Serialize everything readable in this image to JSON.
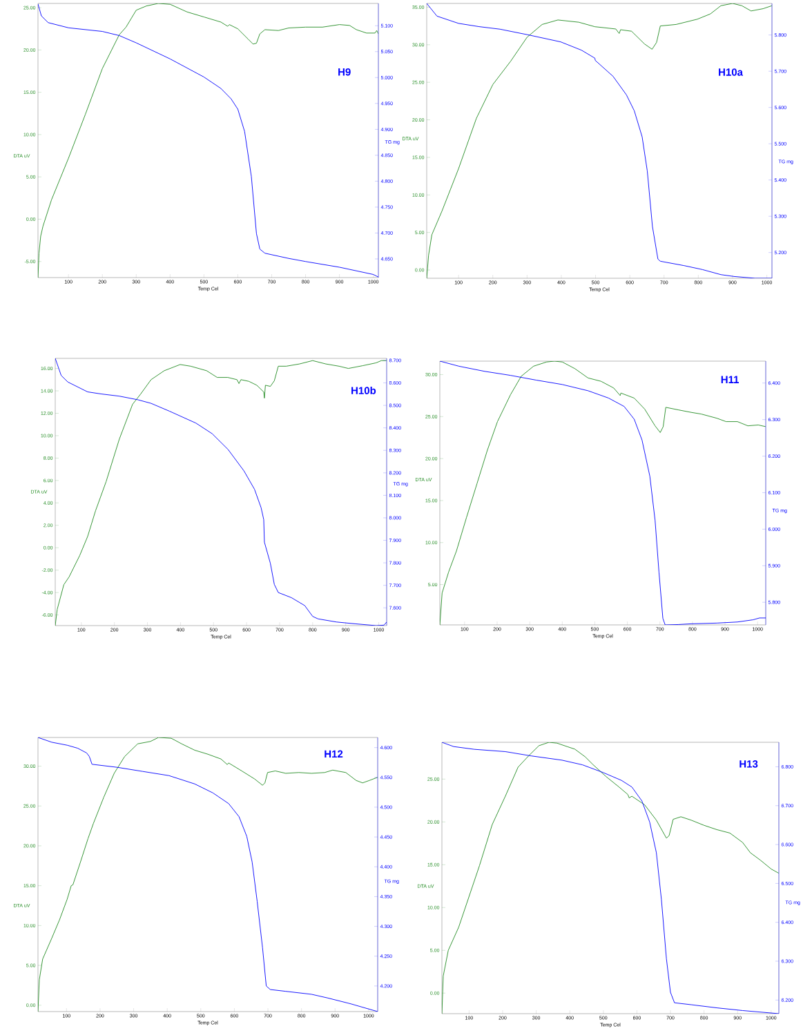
{
  "chart_data": [
    {
      "type": "line",
      "title": "H9",
      "xlabel": "Temp Cel",
      "ylabel": "DTA uV",
      "y2label": "TG mg",
      "xlim": [
        10,
        1015
      ],
      "xticks": [
        100,
        200,
        300,
        400,
        500,
        600,
        700,
        800,
        900,
        1000
      ],
      "ylim": [
        -6.9,
        25.5
      ],
      "yticks": [
        {
          "value": -5,
          "label": "-5.00"
        },
        {
          "value": 0,
          "label": "0.00"
        },
        {
          "value": 5,
          "label": "5.00"
        },
        {
          "value": 10,
          "label": "10.00"
        },
        {
          "value": 15,
          "label": "15.00"
        },
        {
          "value": 20,
          "label": "20.00"
        },
        {
          "value": 25,
          "label": "25.00"
        }
      ],
      "y2lim": [
        4.614,
        5.143
      ],
      "y2ticks": [
        {
          "value": 4.65,
          "label": "4.650"
        },
        {
          "value": 4.7,
          "label": "4.700"
        },
        {
          "value": 4.75,
          "label": "4.750"
        },
        {
          "value": 4.8,
          "label": "4.800"
        },
        {
          "value": 4.85,
          "label": "4.850"
        },
        {
          "value": 4.9,
          "label": "4.900"
        },
        {
          "value": 4.95,
          "label": "4.950"
        },
        {
          "value": 5.0,
          "label": "5.000"
        },
        {
          "value": 5.05,
          "label": "5.050"
        },
        {
          "value": 5.1,
          "label": "5.100"
        }
      ],
      "series": [
        {
          "color": "#228b22",
          "x": [
            10,
            13,
            18,
            25,
            50,
            100,
            150,
            200,
            250,
            270,
            300,
            330,
            365,
            400,
            450,
            500,
            550,
            570,
            575,
            600,
            630,
            645,
            655,
            665,
            680,
            720,
            750,
            800,
            850,
            900,
            930,
            950,
            980,
            1005,
            1010,
            1015
          ],
          "values": [
            -6.9,
            -4,
            -2,
            -0.8,
            2.3,
            7.2,
            12.4,
            17.8,
            21.8,
            22.7,
            24.7,
            25.2,
            25.5,
            25.4,
            24.5,
            23.9,
            23.3,
            22.8,
            23.0,
            22.5,
            21.3,
            20.7,
            20.8,
            21.9,
            22.4,
            22.3,
            22.6,
            22.7,
            22.7,
            23.0,
            22.9,
            22.4,
            22.0,
            22.0,
            22.3,
            21.9
          ]
        },
        {
          "color": "#0000ff",
          "axis": "y2",
          "x": [
            10,
            20,
            40,
            100,
            200,
            250,
            300,
            400,
            500,
            550,
            580,
            600,
            620,
            640,
            655,
            665,
            680,
            750,
            800,
            900,
            1000,
            1015
          ],
          "values": [
            5.142,
            5.119,
            5.106,
            5.096,
            5.089,
            5.081,
            5.067,
            5.036,
            5.001,
            4.979,
            4.959,
            4.939,
            4.896,
            4.809,
            4.699,
            4.669,
            4.661,
            4.651,
            4.645,
            4.634,
            4.62,
            4.615
          ]
        }
      ]
    },
    {
      "type": "line",
      "title": "H10a",
      "xlabel": "Temp Cel",
      "ylabel": "DTA uV",
      "y2label": "TG mg",
      "xlim": [
        7,
        1015
      ],
      "xticks": [
        100,
        200,
        300,
        400,
        500,
        600,
        700,
        800,
        900,
        1000
      ],
      "ylim": [
        -1.1,
        35.5
      ],
      "yticks": [
        {
          "value": 0,
          "label": "0.00"
        },
        {
          "value": 5,
          "label": "5.00"
        },
        {
          "value": 10,
          "label": "10.00"
        },
        {
          "value": 15,
          "label": "15.00"
        },
        {
          "value": 20,
          "label": "20.00"
        },
        {
          "value": 25,
          "label": "25.00"
        },
        {
          "value": 30,
          "label": "30.00"
        },
        {
          "value": 35,
          "label": "35.00"
        }
      ],
      "y2lim": [
        5.129,
        5.887
      ],
      "y2ticks": [
        {
          "value": 5.2,
          "label": "5.200"
        },
        {
          "value": 5.3,
          "label": "5.300"
        },
        {
          "value": 5.4,
          "label": "5.400"
        },
        {
          "value": 5.5,
          "label": "5.500"
        },
        {
          "value": 5.6,
          "label": "5.600"
        },
        {
          "value": 5.7,
          "label": "5.700"
        },
        {
          "value": 5.8,
          "label": "5.800"
        }
      ],
      "series": [
        {
          "color": "#228b22",
          "x": [
            7,
            12.5,
            22,
            52,
            100,
            152,
            200,
            252,
            300,
            344,
            390,
            451,
            498,
            559,
            569,
            573,
            605,
            643,
            665,
            678,
            689,
            735,
            797,
            835,
            866,
            900,
            927,
            954,
            989,
            1015
          ],
          "values": [
            -1.1,
            2.0,
            4.7,
            7.9,
            13.5,
            20.2,
            24.7,
            27.8,
            31.0,
            32.7,
            33.3,
            33.0,
            32.4,
            32.1,
            31.5,
            32.0,
            31.8,
            30.1,
            29.4,
            30.3,
            32.5,
            32.7,
            33.4,
            34.1,
            35.2,
            35.5,
            35.2,
            34.5,
            34.8,
            35.2
          ]
        },
        {
          "color": "#0000ff",
          "axis": "y2",
          "x": [
            7,
            37,
            100,
            160,
            221,
            300,
            398,
            459,
            498,
            499,
            551,
            590,
            613,
            636,
            651,
            666,
            682,
            689,
            758,
            812,
            866,
            904,
            966,
            1015
          ],
          "values": [
            5.887,
            5.852,
            5.832,
            5.823,
            5.816,
            5.801,
            5.781,
            5.758,
            5.736,
            5.73,
            5.686,
            5.635,
            5.591,
            5.519,
            5.425,
            5.272,
            5.182,
            5.176,
            5.164,
            5.153,
            5.139,
            5.134,
            5.129,
            5.129
          ]
        }
      ]
    },
    {
      "type": "line",
      "title": "H10b",
      "xlabel": "Temp Cel",
      "ylabel": "DTA uV",
      "y2label": "TG mg",
      "xlim": [
        21,
        1024
      ],
      "xticks": [
        100,
        200,
        300,
        400,
        500,
        600,
        700,
        800,
        900,
        1000
      ],
      "ylim": [
        -6.95,
        16.9
      ],
      "yticks": [
        {
          "value": -6,
          "label": "-6.00"
        },
        {
          "value": -4,
          "label": "-4.00"
        },
        {
          "value": -2,
          "label": "-2.00"
        },
        {
          "value": 0,
          "label": "0.00"
        },
        {
          "value": 2,
          "label": "2.00"
        },
        {
          "value": 4,
          "label": "4.00"
        },
        {
          "value": 6,
          "label": "6.00"
        },
        {
          "value": 8,
          "label": "8.00"
        },
        {
          "value": 10,
          "label": "10.00"
        },
        {
          "value": 12,
          "label": "12.00"
        },
        {
          "value": 14,
          "label": "14.00"
        },
        {
          "value": 16,
          "label": "16.00"
        }
      ],
      "y2lim": [
        7.521,
        8.709
      ],
      "y2ticks": [
        {
          "value": 7.6,
          "label": "7.600"
        },
        {
          "value": 7.7,
          "label": "7.700"
        },
        {
          "value": 7.8,
          "label": "7.800"
        },
        {
          "value": 7.9,
          "label": "7.900"
        },
        {
          "value": 8.0,
          "label": "8.000"
        },
        {
          "value": 8.1,
          "label": "8.100"
        },
        {
          "value": 8.2,
          "label": "8.200"
        },
        {
          "value": 8.3,
          "label": "8.300"
        },
        {
          "value": 8.4,
          "label": "8.400"
        },
        {
          "value": 8.5,
          "label": "8.500"
        },
        {
          "value": 8.6,
          "label": "8.600"
        },
        {
          "value": 8.7,
          "label": "8.700"
        }
      ],
      "series": [
        {
          "color": "#228b22",
          "x": [
            21,
            27,
            47,
            63,
            95,
            119,
            143,
            175,
            215,
            255,
            279,
            311,
            351,
            399,
            431,
            479,
            511,
            543,
            571,
            577,
            583,
            607,
            631,
            652,
            654,
            657,
            672,
            684,
            696,
            720,
            760,
            800,
            840,
            880,
            908,
            952,
            992,
            1008,
            1024
          ],
          "values": [
            -6.95,
            -5.5,
            -3.3,
            -2.6,
            -0.7,
            1.0,
            3.3,
            5.9,
            9.7,
            12.8,
            13.7,
            15.0,
            15.8,
            16.35,
            16.2,
            15.8,
            15.2,
            15.2,
            15.0,
            14.65,
            15.0,
            14.85,
            14.5,
            13.9,
            13.35,
            14.5,
            14.4,
            14.9,
            16.2,
            16.2,
            16.4,
            16.7,
            16.4,
            16.2,
            16.0,
            16.25,
            16.5,
            16.7,
            16.7
          ]
        },
        {
          "color": "#0000ff",
          "axis": "y2",
          "x": [
            21,
            39,
            59,
            119,
            159,
            215,
            271,
            311,
            367,
            447,
            496,
            544,
            592,
            624,
            644,
            652,
            654,
            672,
            684,
            696,
            736,
            776,
            800,
            816,
            872,
            928,
            992,
            1016,
            1024
          ],
          "values": [
            8.709,
            8.633,
            8.604,
            8.56,
            8.551,
            8.541,
            8.525,
            8.509,
            8.474,
            8.421,
            8.374,
            8.304,
            8.209,
            8.127,
            8.045,
            7.992,
            7.892,
            7.798,
            7.704,
            7.668,
            7.645,
            7.61,
            7.562,
            7.551,
            7.537,
            7.529,
            7.521,
            7.523,
            7.537
          ]
        }
      ]
    },
    {
      "type": "line",
      "title": "H11",
      "xlabel": "Temp Cel",
      "ylabel": "DTA uV",
      "y2label": "TG mg",
      "xlim": [
        24,
        1025
      ],
      "xticks": [
        100,
        200,
        300,
        400,
        500,
        600,
        700,
        800,
        900,
        1000
      ],
      "ylim": [
        0.2,
        31.6
      ],
      "yticks": [
        {
          "value": 5,
          "label": "5.00"
        },
        {
          "value": 10,
          "label": "10.00"
        },
        {
          "value": 15,
          "label": "15.00"
        },
        {
          "value": 20,
          "label": "20.00"
        },
        {
          "value": 25,
          "label": "25.00"
        },
        {
          "value": 30,
          "label": "30.00"
        }
      ],
      "y2lim": [
        5.738,
        6.46
      ],
      "y2ticks": [
        {
          "value": 5.8,
          "label": "5.800"
        },
        {
          "value": 5.9,
          "label": "5.900"
        },
        {
          "value": 6.0,
          "label": "6.000"
        },
        {
          "value": 6.1,
          "label": "6.100"
        },
        {
          "value": 6.2,
          "label": "6.200"
        },
        {
          "value": 6.3,
          "label": "6.300"
        },
        {
          "value": 6.4,
          "label": "6.400"
        }
      ],
      "series": [
        {
          "color": "#228b22",
          "x": [
            24,
            31,
            51,
            75,
            106,
            138,
            170,
            201,
            241,
            274,
            312,
            352,
            376,
            400,
            439,
            479,
            519,
            558,
            578,
            580,
            621,
            653,
            685,
            701,
            710,
            718,
            756,
            796,
            827,
            875,
            903,
            938,
            970,
            1002,
            1025
          ],
          "values": [
            0.2,
            4.0,
            6.5,
            9.0,
            13.0,
            17.0,
            21.0,
            24.4,
            27.6,
            29.8,
            31.0,
            31.5,
            31.6,
            31.5,
            30.7,
            29.6,
            29.2,
            28.4,
            27.5,
            27.8,
            27.2,
            25.9,
            23.9,
            23.1,
            23.8,
            26.1,
            25.8,
            25.5,
            25.3,
            24.8,
            24.4,
            24.4,
            23.9,
            24.0,
            23.8
          ]
        },
        {
          "color": "#0000ff",
          "axis": "y2",
          "x": [
            24,
            83,
            162,
            241,
            320,
            400,
            479,
            542,
            590,
            621,
            645,
            669,
            685,
            697,
            709,
            716,
            756,
            796,
            875,
            938,
            986,
            1006,
            1025
          ],
          "values": [
            6.46,
            6.446,
            6.432,
            6.421,
            6.408,
            6.396,
            6.379,
            6.359,
            6.336,
            6.301,
            6.244,
            6.145,
            6.025,
            5.883,
            5.756,
            5.738,
            5.739,
            5.741,
            5.743,
            5.746,
            5.752,
            5.757,
            5.757
          ]
        }
      ]
    },
    {
      "type": "line",
      "title": "H12",
      "xlabel": "Temp Cel",
      "ylabel": "DTA uV",
      "y2label": "TG mg",
      "xlim": [
        15,
        1027
      ],
      "xticks": [
        100,
        200,
        300,
        400,
        500,
        600,
        700,
        800,
        900,
        1000
      ],
      "ylim": [
        -0.8,
        33.6
      ],
      "yticks": [
        {
          "value": 0,
          "label": "0.00"
        },
        {
          "value": 5,
          "label": "5.00"
        },
        {
          "value": 10,
          "label": "10.00"
        },
        {
          "value": 15,
          "label": "15.00"
        },
        {
          "value": 20,
          "label": "20.00"
        },
        {
          "value": 25,
          "label": "25.00"
        },
        {
          "value": 30,
          "label": "30.00"
        }
      ],
      "y2lim": [
        4.157,
        4.617
      ],
      "y2ticks": [
        {
          "value": 4.2,
          "label": "4.200"
        },
        {
          "value": 4.25,
          "label": "4.250"
        },
        {
          "value": 4.3,
          "label": "4.300"
        },
        {
          "value": 4.35,
          "label": "4.350"
        },
        {
          "value": 4.4,
          "label": "4.400"
        },
        {
          "value": 4.45,
          "label": "4.450"
        },
        {
          "value": 4.5,
          "label": "4.500"
        },
        {
          "value": 4.55,
          "label": "4.550"
        },
        {
          "value": 4.6,
          "label": "4.600"
        }
      ],
      "series": [
        {
          "color": "#228b22",
          "x": [
            15,
            19,
            29,
            56,
            79,
            102,
            114,
            119,
            141,
            164,
            180,
            211,
            242,
            273,
            312,
            350,
            374,
            412,
            443,
            482,
            521,
            560,
            579,
            583,
            622,
            660,
            684,
            691,
            699,
            722,
            753,
            792,
            830,
            869,
            893,
            932,
            963,
            982,
            1002,
            1027
          ],
          "values": [
            -0.8,
            3.2,
            5.8,
            8.4,
            10.7,
            13.3,
            15.0,
            15.1,
            17.9,
            20.9,
            22.8,
            26.1,
            29.1,
            31.2,
            32.8,
            33.1,
            33.6,
            33.5,
            32.8,
            32.0,
            31.5,
            30.9,
            30.2,
            30.4,
            29.4,
            28.4,
            27.6,
            27.9,
            29.2,
            29.4,
            29.1,
            29.2,
            29.1,
            29.2,
            29.5,
            29.2,
            28.2,
            27.9,
            28.2,
            28.6
          ]
        },
        {
          "color": "#0000ff",
          "axis": "y2",
          "x": [
            15,
            56,
            102,
            133,
            160,
            168,
            176,
            250,
            327,
            405,
            482,
            536,
            583,
            614,
            637,
            653,
            668,
            684,
            695,
            707,
            753,
            830,
            877,
            947,
            1027
          ],
          "values": [
            4.617,
            4.609,
            4.604,
            4.599,
            4.591,
            4.585,
            4.572,
            4.567,
            4.56,
            4.553,
            4.539,
            4.524,
            4.506,
            4.484,
            4.451,
            4.408,
            4.342,
            4.264,
            4.2,
            4.194,
            4.191,
            4.186,
            4.18,
            4.17,
            4.157
          ]
        }
      ]
    },
    {
      "type": "line",
      "title": "H13",
      "xlabel": "Temp Cel",
      "ylabel": "DTA uV",
      "y2label": "TG mg",
      "xlim": [
        19,
        1023
      ],
      "xticks": [
        100,
        200,
        300,
        400,
        500,
        600,
        700,
        800,
        900,
        1000
      ],
      "ylim": [
        -2.4,
        29.3
      ],
      "yticks": [
        {
          "value": 0,
          "label": "0.00"
        },
        {
          "value": 5,
          "label": "5.00"
        },
        {
          "value": 10,
          "label": "10.00"
        },
        {
          "value": 15,
          "label": "15.00"
        },
        {
          "value": 20,
          "label": "20.00"
        },
        {
          "value": 25,
          "label": "25.00"
        }
      ],
      "y2lim": [
        6.165,
        6.863
      ],
      "y2ticks": [
        {
          "value": 6.2,
          "label": "6.200"
        },
        {
          "value": 6.3,
          "label": "6.300"
        },
        {
          "value": 6.4,
          "label": "6.400"
        },
        {
          "value": 6.5,
          "label": "6.500"
        },
        {
          "value": 6.6,
          "label": "6.600"
        },
        {
          "value": 6.7,
          "label": "6.700"
        },
        {
          "value": 6.8,
          "label": "6.800"
        }
      ],
      "series": [
        {
          "color": "#228b22",
          "x": [
            19,
            23,
            38,
            69,
            100,
            131,
            169,
            208,
            246,
            277,
            308,
            338,
            362,
            392,
            415,
            446,
            469,
            508,
            546,
            573,
            577,
            585,
            623,
            658,
            688,
            696,
            708,
            731,
            762,
            800,
            838,
            877,
            915,
            938,
            969,
            1000,
            1023
          ],
          "values": [
            -2.4,
            2.0,
            5.0,
            7.7,
            11.3,
            14.9,
            19.7,
            23.0,
            26.4,
            27.7,
            28.9,
            29.3,
            29.2,
            28.8,
            28.5,
            27.6,
            26.7,
            25.3,
            24.1,
            23.2,
            22.8,
            23.0,
            22.0,
            20.2,
            18.1,
            18.4,
            20.3,
            20.6,
            20.2,
            19.6,
            19.1,
            18.7,
            17.6,
            16.4,
            15.5,
            14.5,
            14.0
          ]
        },
        {
          "color": "#0000ff",
          "axis": "y2",
          "x": [
            19,
            54,
            115,
            208,
            285,
            377,
            438,
            500,
            554,
            585,
            615,
            638,
            658,
            673,
            688,
            700,
            712,
            762,
            838,
            915,
            1023
          ],
          "values": [
            6.863,
            6.852,
            6.845,
            6.839,
            6.828,
            6.817,
            6.805,
            6.785,
            6.765,
            6.748,
            6.712,
            6.658,
            6.579,
            6.459,
            6.306,
            6.22,
            6.193,
            6.188,
            6.18,
            6.173,
            6.165
          ]
        }
      ]
    }
  ]
}
